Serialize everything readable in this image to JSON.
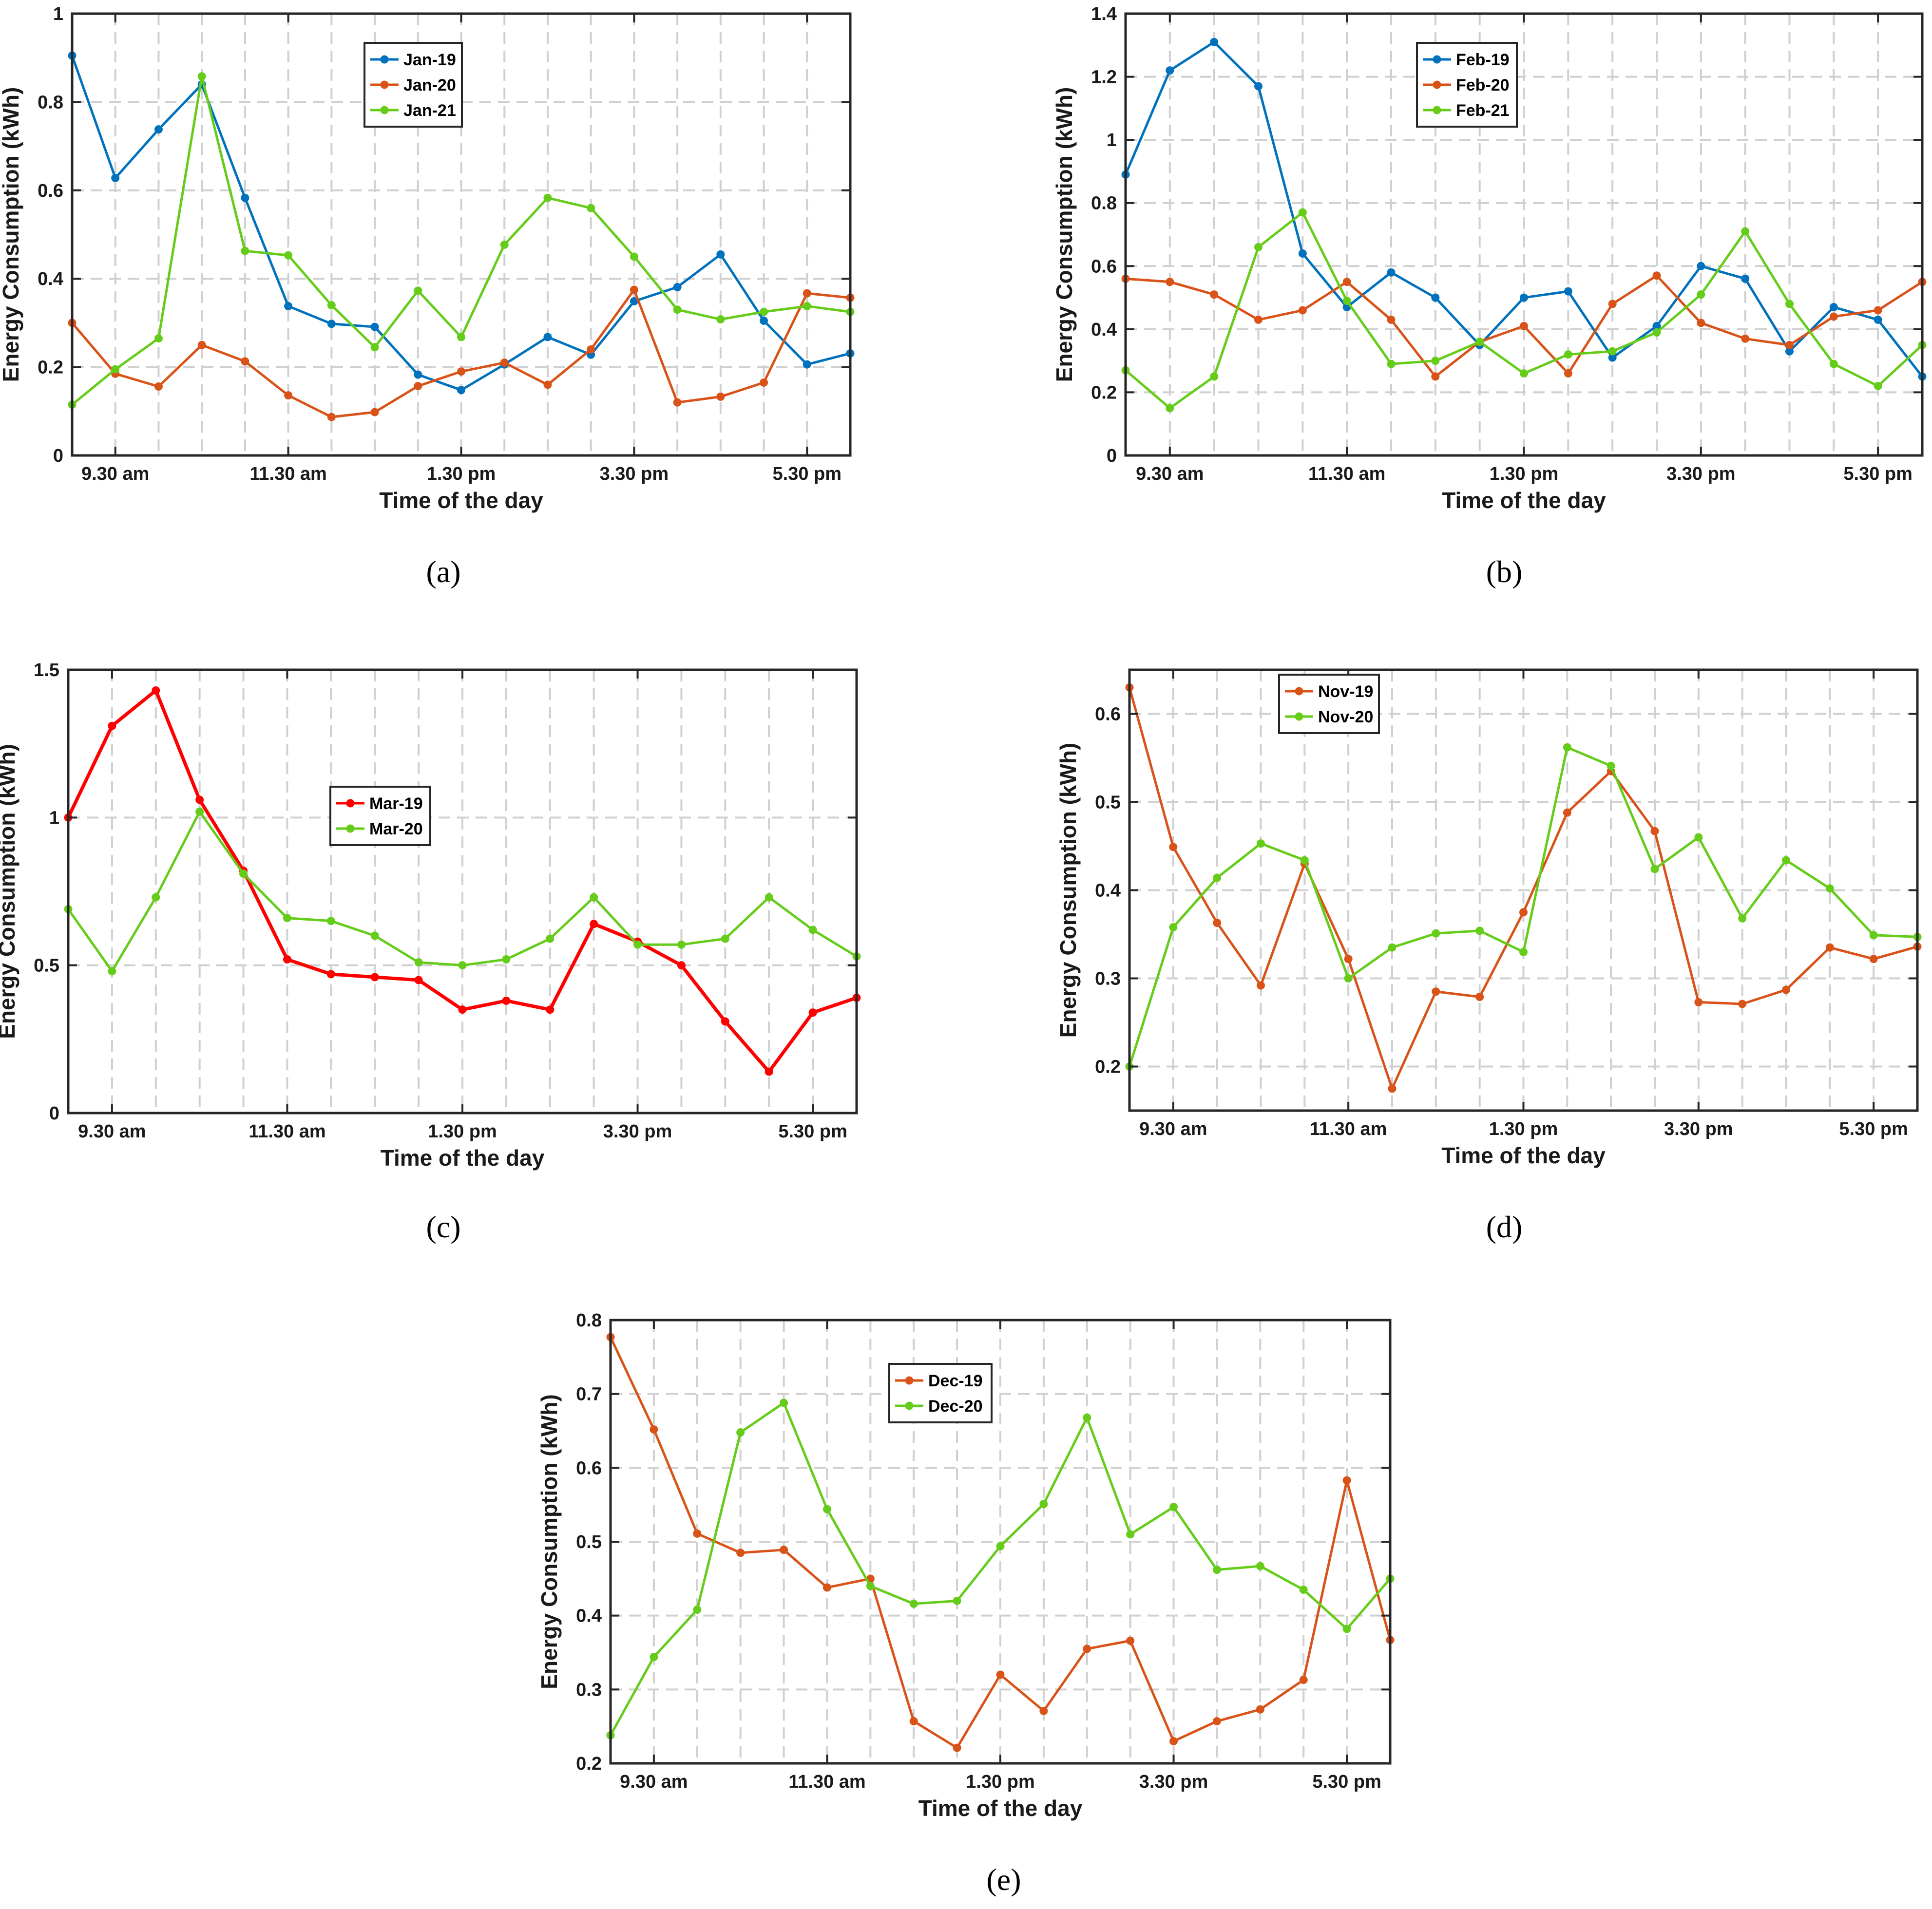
{
  "chart_data": [
    {
      "type": "line",
      "panel": "a",
      "caption": "(a)",
      "xlabel": "Time of the day",
      "ylabel": "Energy Consumption (kWh)",
      "x_ticks": [
        "9.30 am",
        "11.30 am",
        "1.30 pm",
        "3.30 pm",
        "5.30 pm"
      ],
      "ylim": [
        0,
        1
      ],
      "y_ticks": [
        0,
        0.2,
        0.4,
        0.6,
        0.8,
        1
      ],
      "y_tick_labels": [
        "0",
        "0.2",
        "0.4",
        "0.6",
        "0.8",
        "1"
      ],
      "legend_position": "top-center",
      "series": [
        {
          "name": "Jan-19",
          "color": "#0072BD",
          "values": [
            0.905,
            0.628,
            0.738,
            0.84,
            0.583,
            0.338,
            0.298,
            0.291,
            0.183,
            0.148,
            0.206,
            0.268,
            0.228,
            0.349,
            0.381,
            0.455,
            0.305,
            0.206,
            0.231
          ]
        },
        {
          "name": "Jan-20",
          "color": "#D95319",
          "values": [
            0.3,
            0.185,
            0.156,
            0.25,
            0.213,
            0.136,
            0.087,
            0.098,
            0.157,
            0.19,
            0.21,
            0.16,
            0.24,
            0.375,
            0.12,
            0.133,
            0.165,
            0.367,
            0.357
          ]
        },
        {
          "name": "Jan-21",
          "color": "#66CC1A",
          "values": [
            0.115,
            0.195,
            0.265,
            0.858,
            0.463,
            0.453,
            0.34,
            0.245,
            0.373,
            0.268,
            0.477,
            0.583,
            0.56,
            0.45,
            0.33,
            0.308,
            0.325,
            0.338,
            0.325
          ]
        }
      ]
    },
    {
      "type": "line",
      "panel": "b",
      "caption": "(b)",
      "xlabel": "Time of the day",
      "ylabel": "Energy Consumption (kWh)",
      "x_ticks": [
        "9.30 am",
        "11.30 am",
        "1.30 pm",
        "3.30 pm",
        "5.30 pm"
      ],
      "ylim": [
        0,
        1.4
      ],
      "y_ticks": [
        0,
        0.2,
        0.4,
        0.6,
        0.8,
        1,
        1.2,
        1.4
      ],
      "y_tick_labels": [
        "0",
        "0.2",
        "0.4",
        "0.6",
        "0.8",
        "1",
        "1.2",
        "1.4"
      ],
      "legend_position": "top-center",
      "series": [
        {
          "name": "Feb-19",
          "color": "#0072BD",
          "values": [
            0.89,
            1.22,
            1.31,
            1.17,
            0.64,
            0.47,
            0.58,
            0.5,
            0.35,
            0.5,
            0.52,
            0.31,
            0.41,
            0.6,
            0.56,
            0.33,
            0.47,
            0.43,
            0.25
          ]
        },
        {
          "name": "Feb-20",
          "color": "#D95319",
          "values": [
            0.56,
            0.55,
            0.51,
            0.43,
            0.46,
            0.55,
            0.43,
            0.25,
            0.36,
            0.41,
            0.26,
            0.48,
            0.57,
            0.42,
            0.37,
            0.35,
            0.44,
            0.46,
            0.55
          ]
        },
        {
          "name": "Feb-21",
          "color": "#66CC1A",
          "values": [
            0.27,
            0.15,
            0.25,
            0.66,
            0.77,
            0.49,
            0.29,
            0.3,
            0.36,
            0.26,
            0.32,
            0.33,
            0.39,
            0.51,
            0.71,
            0.48,
            0.29,
            0.22,
            0.35
          ]
        }
      ]
    },
    {
      "type": "line",
      "panel": "c",
      "caption": "(c)",
      "xlabel": "Time of the day",
      "ylabel": "Energy Consumption (kWh)",
      "x_ticks": [
        "9.30 am",
        "11.30 am",
        "1.30 pm",
        "3.30 pm",
        "5.30 pm"
      ],
      "ylim": [
        0,
        1.5
      ],
      "y_ticks": [
        0,
        0.5,
        1,
        1.5
      ],
      "y_tick_labels": [
        "0",
        "0.5",
        "1",
        "1.5"
      ],
      "legend_position": "center",
      "series": [
        {
          "name": "Mar-19",
          "color": "#FF0000",
          "values": [
            1.0,
            1.31,
            1.43,
            1.06,
            0.82,
            0.52,
            0.47,
            0.46,
            0.45,
            0.35,
            0.38,
            0.35,
            0.64,
            0.58,
            0.5,
            0.31,
            0.14,
            0.34,
            0.39
          ]
        },
        {
          "name": "Mar-20",
          "color": "#66CC1A",
          "values": [
            0.69,
            0.48,
            0.73,
            1.02,
            0.81,
            0.66,
            0.65,
            0.6,
            0.51,
            0.5,
            0.52,
            0.59,
            0.73,
            0.57,
            0.57,
            0.59,
            0.73,
            0.62,
            0.53
          ]
        }
      ]
    },
    {
      "type": "line",
      "panel": "d",
      "caption": "(d)",
      "xlabel": "Time of the day",
      "ylabel": "Energy Consumption (kWh)",
      "x_ticks": [
        "9.30 am",
        "11.30 am",
        "1.30 pm",
        "3.30 pm",
        "5.30 pm"
      ],
      "ylim": [
        0.15,
        0.65
      ],
      "y_ticks": [
        0.2,
        0.3,
        0.4,
        0.5,
        0.6
      ],
      "y_tick_labels": [
        "0.2",
        "0.3",
        "0.4",
        "0.5",
        "0.6"
      ],
      "legend_position": "top-left",
      "series": [
        {
          "name": "Nov-19",
          "color": "#D95319",
          "values": [
            0.63,
            0.449,
            0.363,
            0.292,
            0.43,
            0.322,
            0.175,
            0.285,
            0.279,
            0.375,
            0.488,
            0.535,
            0.467,
            0.273,
            0.271,
            0.287,
            0.335,
            0.322,
            0.336
          ]
        },
        {
          "name": "Nov-20",
          "color": "#66CC1A",
          "values": [
            0.2,
            0.358,
            0.414,
            0.453,
            0.434,
            0.3,
            0.335,
            0.351,
            0.354,
            0.33,
            0.562,
            0.541,
            0.424,
            0.46,
            0.368,
            0.434,
            0.402,
            0.349,
            0.347
          ]
        }
      ]
    },
    {
      "type": "line",
      "panel": "e",
      "caption": "(e)",
      "xlabel": "Time of the day",
      "ylabel": "Energy Consumption (kWh)",
      "x_ticks": [
        "9.30 am",
        "11.30 am",
        "1.30 pm",
        "3.30 pm",
        "5.30 pm"
      ],
      "ylim": [
        0.2,
        0.8
      ],
      "y_ticks": [
        0.2,
        0.3,
        0.4,
        0.5,
        0.6,
        0.7,
        0.8
      ],
      "y_tick_labels": [
        "0.2",
        "0.3",
        "0.4",
        "0.5",
        "0.6",
        "0.7",
        "0.8"
      ],
      "legend_position": "top-center",
      "series": [
        {
          "name": "Dec-19",
          "color": "#D95319",
          "values": [
            0.777,
            0.652,
            0.511,
            0.485,
            0.489,
            0.438,
            0.45,
            0.257,
            0.221,
            0.32,
            0.271,
            0.355,
            0.366,
            0.23,
            0.257,
            0.273,
            0.313,
            0.583,
            0.367
          ]
        },
        {
          "name": "Dec-20",
          "color": "#66CC1A",
          "values": [
            0.238,
            0.344,
            0.408,
            0.648,
            0.688,
            0.544,
            0.44,
            0.416,
            0.42,
            0.494,
            0.551,
            0.668,
            0.51,
            0.547,
            0.462,
            0.467,
            0.435,
            0.382,
            0.45
          ]
        }
      ]
    }
  ]
}
